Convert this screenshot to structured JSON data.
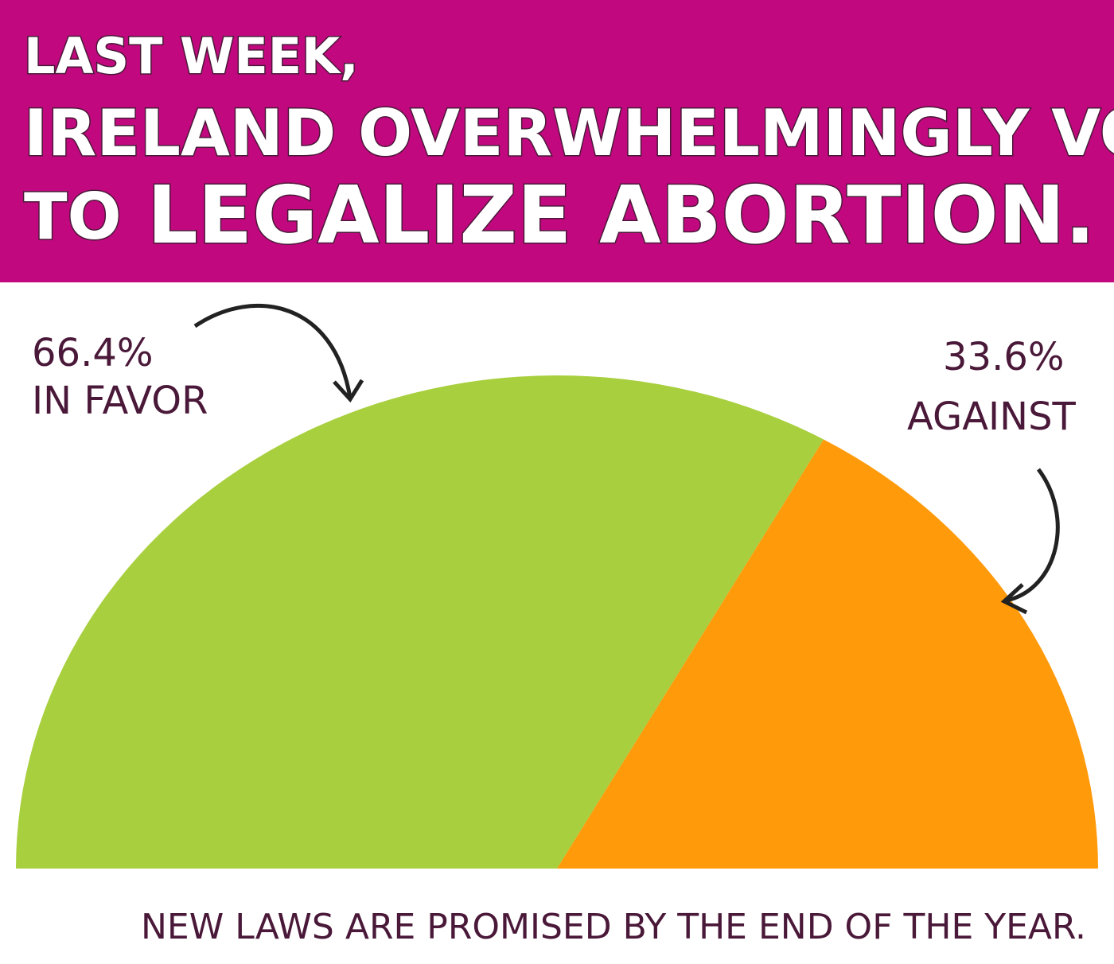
{
  "chart_data": {
    "type": "pie",
    "title_lines": [
      "LAST WEEK,",
      "IRELAND OVERWHELMINGLY VOTED",
      "TO",
      "LEGALIZE ABORTION."
    ],
    "categories": [
      "IN FAVOR",
      "AGAINST"
    ],
    "values": [
      66.4,
      33.6
    ],
    "value_labels": [
      "66.4%",
      "33.6%"
    ],
    "colors": [
      "#a8cf3e",
      "#ff9a0a"
    ],
    "footnote": "NEW LAWS ARE PROMISED BY THE END OF THE YEAR."
  }
}
